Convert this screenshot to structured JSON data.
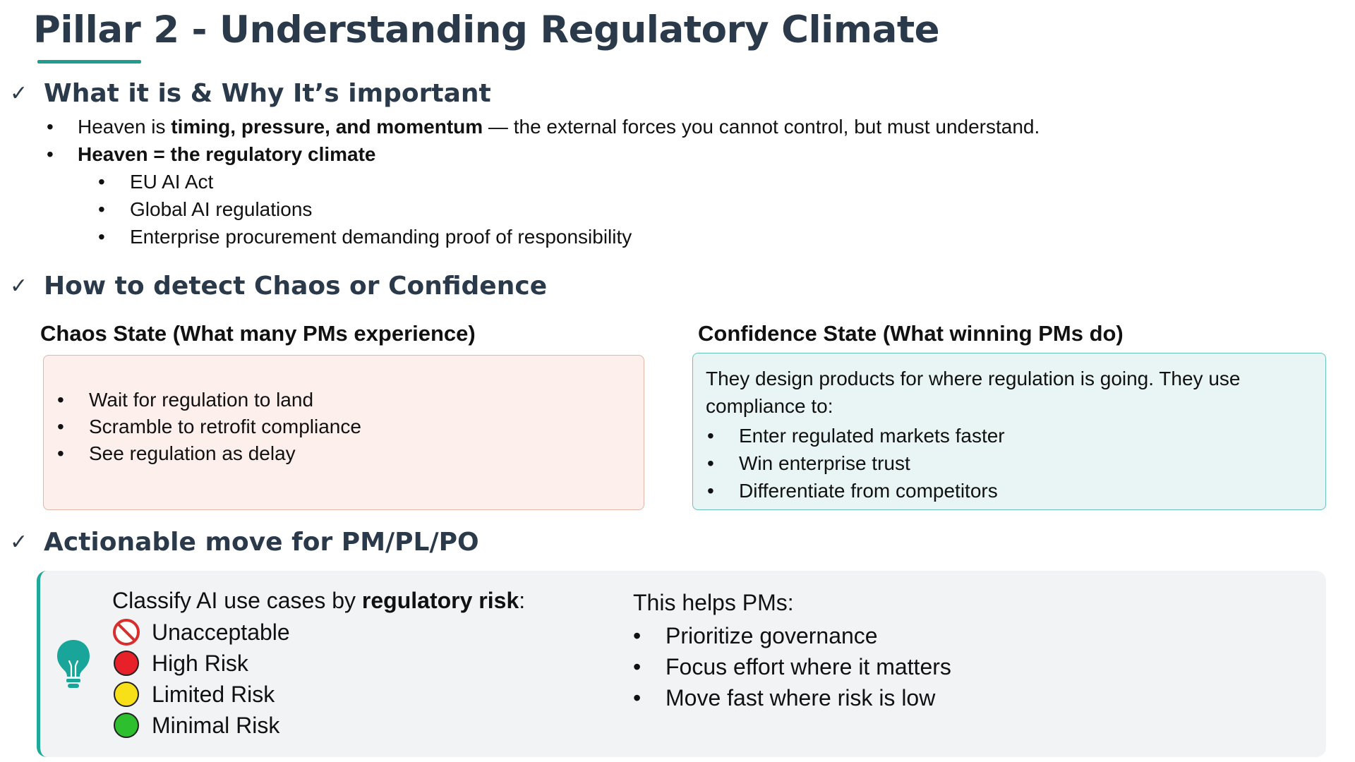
{
  "title": "Pillar 2 - Understanding Regulatory Climate",
  "accent_color": "#1f9e8f",
  "heading_color": "#2b3a4a",
  "sections": {
    "what": {
      "heading": "What it is & Why It’s important",
      "line1": {
        "pre": "Heaven is ",
        "bold": "timing, pressure, and momentum",
        "post": " — the external forces you cannot control, but must understand."
      },
      "line2_bold": "Heaven = the regulatory climate",
      "sub_items": [
        "EU AI Act",
        "Global AI regulations",
        "Enterprise procurement demanding proof of responsibility"
      ]
    },
    "detect": {
      "heading": "How to detect Chaos or Confidence",
      "chaos": {
        "title": "Chaos State (What many PMs experience)",
        "items": [
          "Wait for regulation to land",
          "Scramble to retrofit compliance",
          "See regulation as delay"
        ],
        "bg_color": "#fcefec"
      },
      "confidence": {
        "title": "Confidence State (What winning PMs do)",
        "intro": "They design products for where regulation is going. They use compliance to:",
        "items": [
          "Enter regulated markets faster",
          "Win enterprise trust",
          "Differentiate from competitors"
        ],
        "bg_color": "#e8f5f4"
      }
    },
    "action": {
      "heading": "Actionable move for PM/PL/PO",
      "icon": "lightbulb-icon",
      "classify": {
        "pre": "Classify AI use cases by ",
        "bold": "regulatory risk",
        "post": ":"
      },
      "risk_levels": [
        {
          "label": "Unacceptable",
          "icon": "prohibited-icon",
          "color": "#e03030"
        },
        {
          "label": "High Risk",
          "icon": "red-circle-icon",
          "color": "#e8202a"
        },
        {
          "label": "Limited Risk",
          "icon": "yellow-circle-icon",
          "color": "#f7e017"
        },
        {
          "label": "Minimal Risk",
          "icon": "green-circle-icon",
          "color": "#2dbf2d"
        }
      ],
      "helps_title": "This helps PMs:",
      "helps_items": [
        "Prioritize governance",
        "Focus effort where it matters",
        "Move fast where risk is low"
      ]
    }
  }
}
